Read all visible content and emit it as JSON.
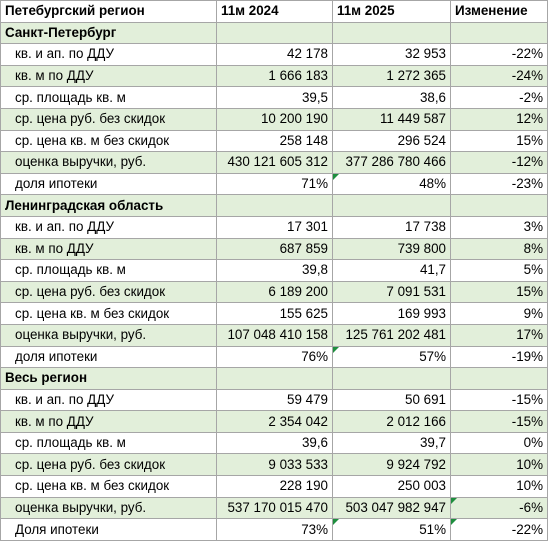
{
  "header": {
    "col0": "Петебургский регион",
    "col1": "11м 2024",
    "col2": "11м 2025",
    "col3": "Изменение"
  },
  "groups": [
    {
      "title": "Санкт-Петербург",
      "rows": [
        [
          "кв. и ап. по ДДУ",
          "42 178",
          "32 953",
          "-22%"
        ],
        [
          "кв. м по ДДУ",
          "1 666 183",
          "1 272 365",
          "-24%"
        ],
        [
          "ср. площадь кв. м",
          "39,5",
          "38,6",
          "-2%"
        ],
        [
          "ср. цена руб. без скидок",
          "10 200 190",
          "11 449 587",
          "12%"
        ],
        [
          "ср. цена кв. м без скидок",
          "258 148",
          "296 524",
          "15%"
        ],
        [
          "оценка выручки, руб.",
          "430 121 605 312",
          "377 286 780 466",
          "-12%"
        ],
        [
          "доля ипотеки",
          "71%",
          "48%",
          "-23%"
        ]
      ]
    },
    {
      "title": "Ленинградская область",
      "rows": [
        [
          "кв. и ап. по ДДУ",
          "17 301",
          "17 738",
          "3%"
        ],
        [
          "кв. м по ДДУ",
          "687 859",
          "739 800",
          "8%"
        ],
        [
          "ср. площадь кв. м",
          "39,8",
          "41,7",
          "5%"
        ],
        [
          "ср. цена руб. без скидок",
          "6 189 200",
          "7 091 531",
          "15%"
        ],
        [
          "ср. цена кв. м без скидок",
          "155 625",
          "169 993",
          "9%"
        ],
        [
          "оценка выручки, руб.",
          "107 048 410 158",
          "125 761 202 481",
          "17%"
        ],
        [
          "доля ипотеки",
          "76%",
          "57%",
          "-19%"
        ]
      ]
    },
    {
      "title": "Весь регион",
      "rows": [
        [
          "кв. и ап. по ДДУ",
          "59 479",
          "50 691",
          "-15%"
        ],
        [
          "кв. м по ДДУ",
          "2 354 042",
          "2 012 166",
          "-15%"
        ],
        [
          "ср. площадь кв. м",
          "39,6",
          "39,7",
          "0%"
        ],
        [
          "ср. цена руб. без скидок",
          "9 033 533",
          "9 924 792",
          "10%"
        ],
        [
          "ср. цена кв. м без скидок",
          "228 190",
          "250 003",
          "10%"
        ],
        [
          "оценка выручки, руб.",
          "537 170 015 470",
          "503 047 982 947",
          "-6%"
        ],
        [
          "Доля ипотеки",
          "73%",
          "51%",
          "-22%"
        ]
      ]
    }
  ],
  "colors": {
    "band": "#e2efda",
    "border": "#a6a6a6",
    "indicator": "#1e8e3e"
  }
}
